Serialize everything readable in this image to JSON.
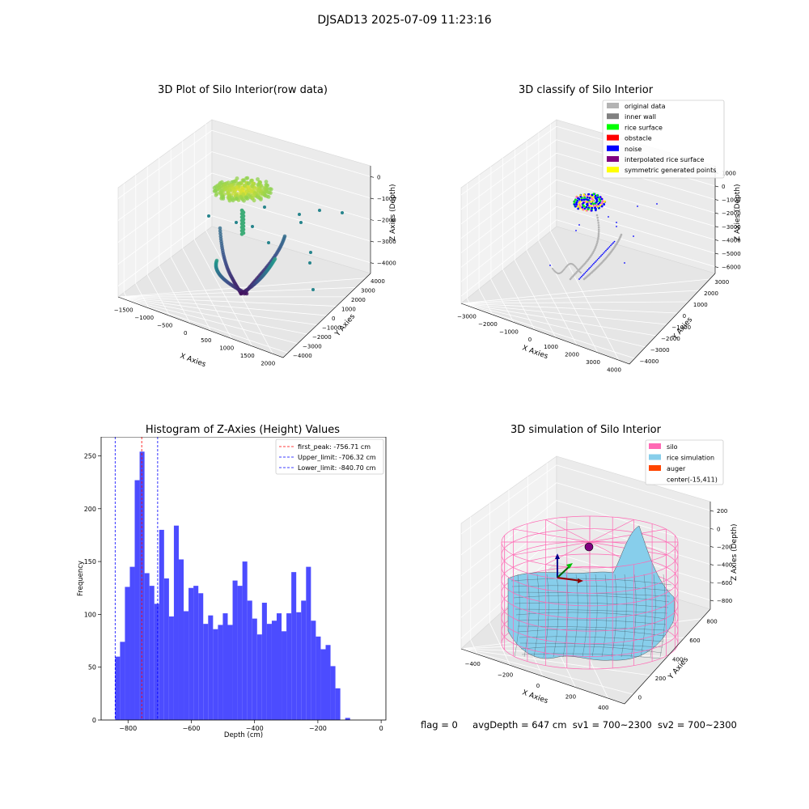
{
  "figure": {
    "suptitle": "DJSAD13 2025-07-09 11:23:16"
  },
  "chart_data": [
    {
      "type": "scatter",
      "title": "3D Plot of Silo Interior(row data)",
      "xlabel": "X Axies",
      "ylabel": "Y Axies",
      "zlabel": "Z Axies (Depth)",
      "x_ticks": [
        "−1500",
        "−1000",
        "−500",
        "0",
        "500",
        "1000",
        "1500",
        "2000"
      ],
      "y_ticks": [
        "−4000",
        "−3000",
        "−2000",
        "−1000",
        "0",
        "1000",
        "2000",
        "3000",
        "4000"
      ],
      "z_ticks": [
        "−4000",
        "−3000",
        "−2000",
        "−1000",
        "0"
      ],
      "colormap": "viridis"
    },
    {
      "type": "scatter",
      "title": "3D classify of Silo Interior",
      "xlabel": "X Axies",
      "ylabel": "Y Axies",
      "zlabel": "Z Axies (Depth)",
      "x_ticks": [
        "−3000",
        "−2000",
        "−1000",
        "0",
        "1000",
        "2000",
        "3000",
        "4000"
      ],
      "y_ticks": [
        "−4000",
        "−3000",
        "−2000",
        "−1000",
        "0",
        "1000",
        "2000",
        "3000"
      ],
      "z_ticks": [
        "−6000",
        "−5000",
        "−4000",
        "−3000",
        "−2000",
        "−1000",
        "0",
        "1000"
      ],
      "legend_placement": "top-right",
      "legend": [
        {
          "label": "original data",
          "color": "#b3b3b3"
        },
        {
          "label": "inner wall",
          "color": "#808080"
        },
        {
          "label": "rice surface",
          "color": "#00ff00"
        },
        {
          "label": "obstacle",
          "color": "#ff0000"
        },
        {
          "label": "noise",
          "color": "#0000ff"
        },
        {
          "label": "interpolated rice surface",
          "color": "#800080"
        },
        {
          "label": "symmetric generated points",
          "color": "#ffff00"
        }
      ]
    },
    {
      "type": "bar",
      "title": "Histogram of Z-Axies (Height) Values",
      "xlabel": "Depth (cm)",
      "ylabel": "Frequency",
      "xlim": [
        -885,
        15
      ],
      "ylim": [
        0,
        268
      ],
      "x_ticks": [
        "−800",
        "−600",
        "−400",
        "−200",
        "0"
      ],
      "y_ticks": [
        "0",
        "50",
        "100",
        "150",
        "200",
        "250"
      ],
      "bin_start": -840.7,
      "bin_width": 15.47,
      "bar_color": "#4c4cff",
      "values": [
        60,
        74,
        126,
        145,
        227,
        254,
        139,
        127,
        110,
        180,
        134,
        98,
        184,
        152,
        103,
        125,
        127,
        120,
        91,
        99,
        86,
        90,
        101,
        90,
        132,
        127,
        150,
        113,
        96,
        81,
        111,
        91,
        94,
        101,
        84,
        101,
        140,
        102,
        113,
        145,
        94,
        79,
        67,
        71,
        51,
        30,
        0,
        2
      ],
      "lines": [
        {
          "label": "first_peak: -756.71 cm",
          "value": -756.71,
          "color": "#ff0000"
        },
        {
          "label": "Upper_limit: -706.32 cm",
          "value": -706.32,
          "color": "#0000ff"
        },
        {
          "label": "Lower_limit: -840.70 cm",
          "value": -840.7,
          "color": "#0000ff"
        }
      ],
      "legend_placement": "top-right"
    },
    {
      "type": "surface",
      "title": "3D simulation of Silo Interior",
      "xlabel": "X Axies",
      "ylabel": "Y Axies",
      "zlabel": "Z Axies (Depth)",
      "x_ticks": [
        "−400",
        "−200",
        "0",
        "200",
        "400"
      ],
      "y_ticks": [
        "0",
        "200",
        "400",
        "600",
        "800"
      ],
      "z_ticks": [
        "−800",
        "−600",
        "−400",
        "−200",
        "0",
        "200"
      ],
      "legend_placement": "top-right",
      "legend": [
        {
          "label": "silo",
          "color": "#ff69b4"
        },
        {
          "label": "rice simulation",
          "color": "#87ceeb"
        },
        {
          "label": "auger",
          "color": "#ff4500"
        },
        {
          "label": "center(-15,411)",
          "color": ""
        }
      ]
    }
  ],
  "status": {
    "flag": "flag = 0",
    "avg": "avgDepth = 647 cm",
    "sv1": "sv1 = 700~2300",
    "sv2": "sv2 = 700~2300"
  }
}
